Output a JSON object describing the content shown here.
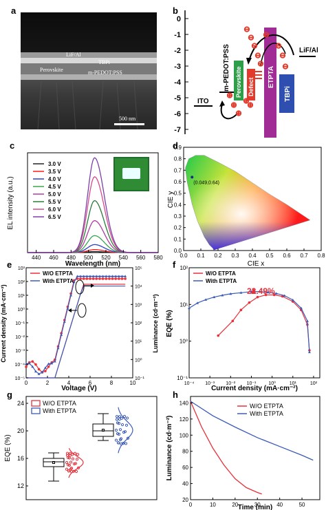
{
  "panels": {
    "a": {
      "label": "a",
      "layers": [
        "LiF/Al",
        "TBPi",
        "Perovskite",
        "m-PEDOT:PSS"
      ],
      "scale_bar": "500 nm"
    },
    "b": {
      "label": "b",
      "y_ticks": [
        "0",
        "-1",
        "-2",
        "-3",
        "-4",
        "-5",
        "-6",
        "-7"
      ],
      "layers": [
        "ITO",
        "m-PEDOT:PSS",
        "Perovskite",
        "Defect",
        "ETPTA",
        "TBPi",
        "LiF/Al"
      ],
      "charge_symbol": "⊖",
      "hole_symbol": "⊕",
      "colors": {
        "perovskite": "#2e9e48",
        "defect": "#e33a2c",
        "etpta": "#a12c96",
        "tbpi": "#2f4fb0"
      }
    },
    "c": {
      "label": "c",
      "xlabel": "Wavelength (nm)",
      "ylabel": "EL intensity (a.u.)"
    },
    "d": {
      "label": "d",
      "xlabel": "CIE x",
      "ylabel": "CIE y",
      "annotation": "(0.049,0.64)"
    },
    "e": {
      "label": "e",
      "xlabel": "Voltage (V)",
      "ylabel_left": "Current density (mA·cm⁻²)",
      "ylabel_right": "Luminance (cd·m⁻²)"
    },
    "f": {
      "label": "f",
      "xlabel": "Current density (mA·cm⁻²)",
      "ylabel": "EQE (%)",
      "annotation": "22.49%"
    },
    "g": {
      "label": "g",
      "ylabel": "EQE (%)"
    },
    "h": {
      "label": "h",
      "xlabel": "Time (min)",
      "ylabel": "Luminance (cd·m⁻²)"
    }
  },
  "chart_data": [
    {
      "id": "c",
      "type": "line",
      "xlabel": "Wavelength (nm)",
      "ylabel": "EL intensity (a.u.)",
      "xlim": [
        430,
        580
      ],
      "x_ticks": [
        440,
        460,
        480,
        500,
        520,
        540,
        560,
        580
      ],
      "peak_nm": 507,
      "series": [
        {
          "name": "3.0 V",
          "peak": 0.01,
          "color": "#222222"
        },
        {
          "name": "3.5 V",
          "peak": 0.03,
          "color": "#ff1a1a"
        },
        {
          "name": "4.0 V",
          "peak": 0.08,
          "color": "#2a3fc8"
        },
        {
          "name": "4.5 V",
          "peak": 0.17,
          "color": "#3aa54a"
        },
        {
          "name": "5.0 V",
          "peak": 0.32,
          "color": "#b23aa0"
        },
        {
          "name": "5.5 V",
          "peak": 0.52,
          "color": "#2a7a3a"
        },
        {
          "name": "6.0 V",
          "peak": 0.76,
          "color": "#d24a8a"
        },
        {
          "name": "6.5 V",
          "peak": 0.95,
          "color": "#7b3fa8"
        }
      ]
    },
    {
      "id": "d",
      "type": "scatter",
      "xlabel": "CIE x",
      "ylabel": "CIE y",
      "x_ticks": [
        0.0,
        0.1,
        0.2,
        0.3,
        0.4,
        0.5,
        0.6,
        0.7,
        0.8
      ],
      "y_ticks": [
        0.0,
        0.1,
        0.2,
        0.3,
        0.4,
        0.5,
        0.6,
        0.7,
        0.8,
        0.9
      ],
      "point": {
        "x": 0.049,
        "y": 0.64
      }
    },
    {
      "id": "e",
      "type": "line",
      "xlabel": "Voltage (V)",
      "ylabel_left": "Current density (mA·cm⁻²)",
      "ylabel_right": "Luminance (cd·m⁻²)",
      "x_ticks": [
        0,
        2,
        4,
        6,
        8,
        10
      ],
      "y_left_ticks": [
        "10⁻⁵",
        "10⁻⁴",
        "10⁻³",
        "10⁻²",
        "10⁻¹",
        "10⁰",
        "10¹",
        "10²",
        "10³"
      ],
      "y_right_ticks": [
        "10⁻¹",
        "10⁰",
        "10¹",
        "10²",
        "10³",
        "10⁴",
        "10⁵"
      ],
      "series": [
        {
          "name": "W/O ETPTA",
          "color": "#e8303a"
        },
        {
          "name": "With ETPTA",
          "color": "#3a5ab8"
        }
      ]
    },
    {
      "id": "f",
      "type": "line",
      "xlabel": "Current density (mA·cm⁻²)",
      "ylabel": "EQE (%)",
      "x_ticks": [
        "10⁻⁴",
        "10⁻³",
        "10⁻²",
        "10⁻¹",
        "10⁰",
        "10¹",
        "10²"
      ],
      "y_ticks": [
        "10⁻¹",
        "10⁰",
        "10¹",
        "10²"
      ],
      "series": [
        {
          "name": "W/O ETPTA",
          "color": "#e8303a"
        },
        {
          "name": "With ETPTA",
          "color": "#3a5ab8"
        }
      ],
      "max_eqe": 22.49
    },
    {
      "id": "g",
      "type": "box",
      "ylabel": "EQE (%)",
      "y_ticks": [
        12,
        16,
        20,
        24
      ],
      "ylim": [
        10,
        25
      ],
      "series": [
        {
          "name": "W/O ETPTA",
          "color": "#e8303a",
          "q1": 14.8,
          "median": 15.5,
          "q3": 16.0,
          "min": 12.7,
          "max": 16.8,
          "mean": 15.4
        },
        {
          "name": "With ETPTA",
          "color": "#3a5ab8",
          "q1": 19.2,
          "median": 20.0,
          "q3": 21.0,
          "min": 18.6,
          "max": 22.5,
          "mean": 20.1
        }
      ]
    },
    {
      "id": "h",
      "type": "line",
      "xlabel": "Time (min)",
      "ylabel": "Luminance (cd·m⁻²)",
      "x_ticks": [
        0,
        10,
        20,
        30,
        40,
        50
      ],
      "y_ticks": [
        20,
        40,
        60,
        80,
        100,
        120,
        140
      ],
      "xlim": [
        0,
        58
      ],
      "ylim": [
        20,
        148
      ],
      "series": [
        {
          "name": "W/O ETPTA",
          "color": "#e8303a",
          "x": [
            0,
            5,
            10,
            15,
            20,
            25,
            30,
            32
          ],
          "y": [
            142,
            110,
            84,
            63,
            46,
            35,
            29,
            27
          ]
        },
        {
          "name": "With ETPTA",
          "color": "#3a5ab8",
          "x": [
            0,
            10,
            20,
            30,
            40,
            50,
            55
          ],
          "y": [
            142,
            124,
            110,
            97,
            86,
            75,
            69
          ]
        }
      ]
    }
  ]
}
